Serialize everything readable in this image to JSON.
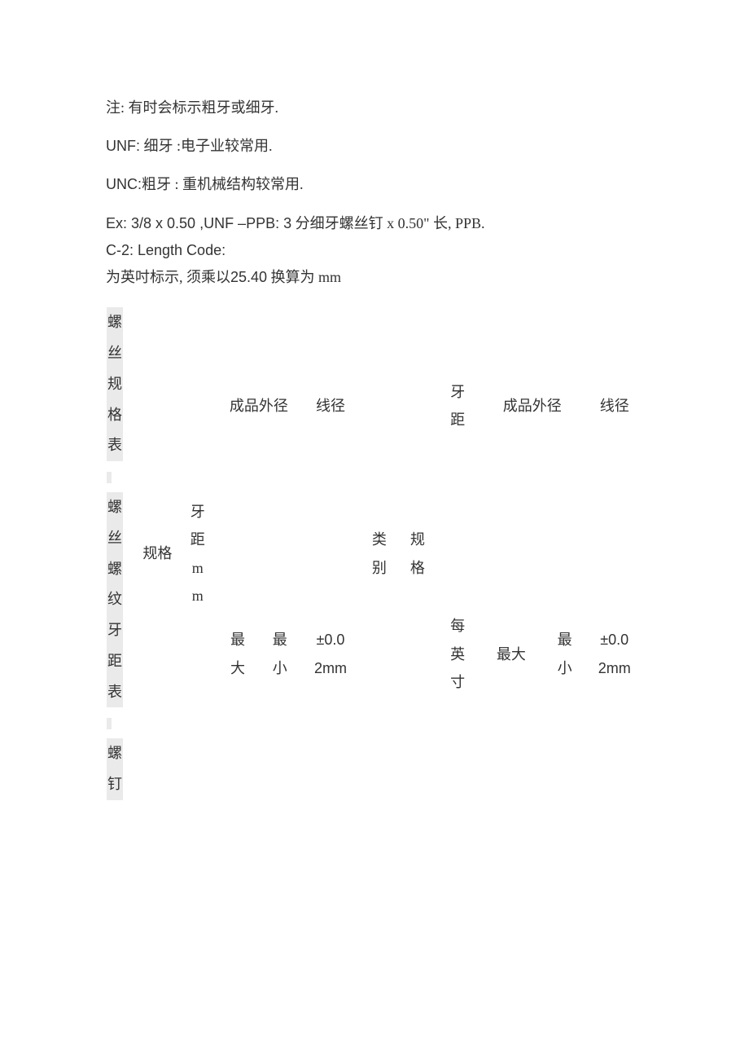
{
  "paragraphs": {
    "p1": "注:  有时会标示粗牙或细牙.",
    "p2_pre": "UNF:",
    "p2_rest": "  细牙  :电子业较常用.",
    "p3_pre": "UNC:",
    "p3_rest": "粗牙  :  重机械结构较常用.",
    "p4_pre": "Ex: 3/8 x 0.50 ,UNF –PPB: 3",
    "p4_rest": "  分细牙螺丝钉  x 0.50\"  长, PPB.",
    "p5": "C-2: Length Code:",
    "p6_a": "为英吋标示,  须乘以",
    "p6_b": "25.40",
    "p6_c": "  换算为 mm"
  },
  "sideTitle": [
    {
      "t": "螺",
      "hl": true
    },
    {
      "t": "丝",
      "hl": true
    },
    {
      "t": "规",
      "hl": true
    },
    {
      "t": "格",
      "hl": true
    },
    {
      "t": "表",
      "hl": true
    },
    {
      "dot": true
    },
    {
      "t": "螺",
      "hl": true
    },
    {
      "t": "丝",
      "hl": true
    },
    {
      "t": "螺",
      "hl": true
    },
    {
      "t": "纹",
      "hl": true
    },
    {
      "t": "牙",
      "hl": true
    },
    {
      "t": "距",
      "hl": true
    },
    {
      "t": "表",
      "hl": true
    },
    {
      "dot": true
    },
    {
      "t": "螺",
      "hl": true
    },
    {
      "t": "钉",
      "hl": true
    }
  ],
  "headers": {
    "row1": {
      "chengpin1": "成品外径",
      "xianjing1": "线径",
      "yaju_v": [
        "牙",
        "距"
      ],
      "chengpin2": "成品外径",
      "xianjing2": "线径"
    },
    "row2": {
      "guige": "规格",
      "yaju_mm": [
        "牙",
        "距",
        "m",
        "m"
      ],
      "zuida1": [
        "最",
        "大"
      ],
      "zuixiao1": [
        "最",
        "小"
      ],
      "tol1": [
        "±0.0",
        "2mm"
      ],
      "leibie": [
        "类",
        "别"
      ],
      "guige2": [
        "规",
        "格"
      ],
      "meiyingcun": [
        "每",
        "英",
        "寸"
      ],
      "zuida2": "最大",
      "zuixiao2": [
        "最",
        "小"
      ],
      "tol2": [
        "±0.0",
        "2mm"
      ]
    }
  },
  "colors": {
    "text": "#333333",
    "highlight_bg": "#eaeaea",
    "background": "#ffffff"
  }
}
